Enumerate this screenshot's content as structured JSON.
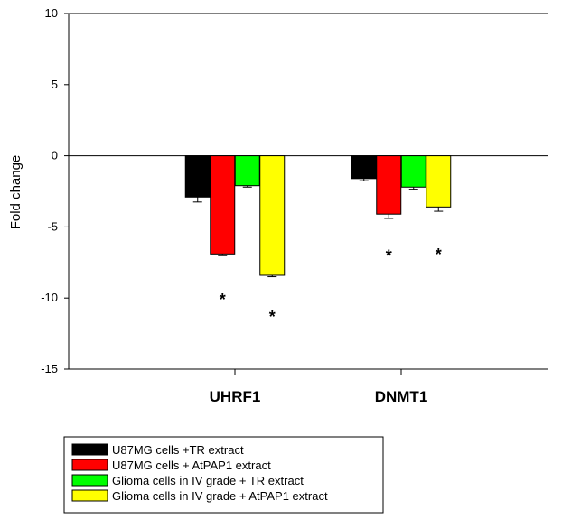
{
  "chart_data": {
    "type": "bar",
    "categories": [
      "UHRF1",
      "DNMT1"
    ],
    "ylabel": "Fold change",
    "xlabel": "",
    "ylim": [
      -15,
      10
    ],
    "yticks": [
      10,
      5,
      0,
      -5,
      -10,
      -15
    ],
    "grid": false,
    "legend_position": "bottom-left",
    "series": [
      {
        "name": "U87MG cells +TR extract",
        "color": "#000000",
        "values": [
          -2.9,
          -1.6
        ],
        "errors": [
          0.35,
          0.15
        ]
      },
      {
        "name": "U87MG cells + AtPAP1 extract",
        "color": "#ff0000",
        "values": [
          -6.9,
          -4.1
        ],
        "errors": [
          0.12,
          0.3
        ]
      },
      {
        "name": "Glioma cells in IV grade + TR extract",
        "color": "#00ff00",
        "values": [
          -2.1,
          -2.2
        ],
        "errors": [
          0.1,
          0.15
        ]
      },
      {
        "name": "Glioma cells in IV grade + AtPAP1 extract",
        "color": "#ffff00",
        "values": [
          -8.4,
          -3.6
        ],
        "errors": [
          0.1,
          0.3
        ]
      }
    ],
    "annotations": [
      {
        "text": "*",
        "category": 0,
        "series": 1,
        "y": -10.0
      },
      {
        "text": "*",
        "category": 0,
        "series": 3,
        "y": -11.2
      },
      {
        "text": "*",
        "category": 1,
        "series": 1,
        "y": -6.9
      },
      {
        "text": "*",
        "category": 1,
        "series": 3,
        "y": -6.8
      }
    ]
  }
}
